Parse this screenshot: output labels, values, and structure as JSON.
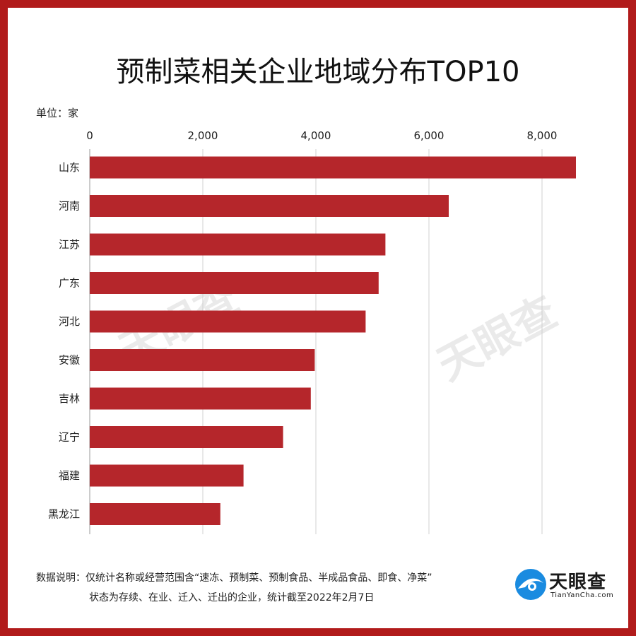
{
  "chart_data": {
    "type": "bar",
    "orientation": "horizontal",
    "title": "预制菜相关企业地域分布TOP10",
    "unit_label": "单位：家",
    "categories": [
      "山东",
      "河南",
      "江苏",
      "广东",
      "河北",
      "安徽",
      "吉林",
      "辽宁",
      "福建",
      "黑龙江"
    ],
    "values": [
      8600,
      6350,
      5230,
      5110,
      4880,
      3980,
      3910,
      3420,
      2720,
      2310
    ],
    "xlim": [
      0,
      8000
    ],
    "xticks": [
      0,
      2000,
      4000,
      6000,
      8000
    ],
    "xtick_labels": [
      "0",
      "2,000",
      "4,000",
      "6,000",
      "8,000"
    ],
    "grid": "vertical",
    "bar_color": "#b5262b"
  },
  "footnote": {
    "line1": "数据说明：仅统计名称或经营范围含“速冻、预制菜、预制食品、半成品食品、即食、净菜”",
    "line2": "状态为存续、在业、迁入、迁出的企业，统计截至2022年2月7日"
  },
  "brand": {
    "name": "天眼查",
    "domain": "TianYanCha.com",
    "color": "#1a8be0"
  },
  "frame_color": "#b11b1b"
}
